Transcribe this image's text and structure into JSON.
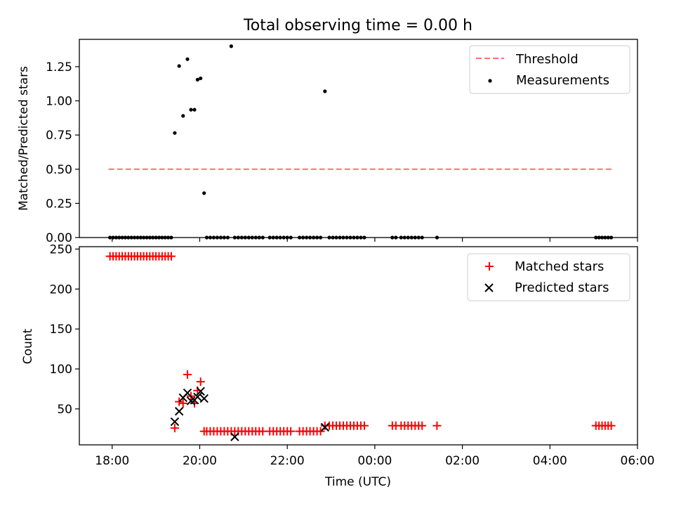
{
  "title": "Total observing time = 0.00 h",
  "chart_data": [
    {
      "type": "scatter",
      "ylabel": "Matched/Predicted stars",
      "xlim_hours": [
        17.25,
        30.0
      ],
      "ylim": [
        0.0,
        1.45
      ],
      "x_ticks": [
        {
          "value": 18,
          "label": ""
        },
        {
          "value": 20,
          "label": ""
        },
        {
          "value": 22,
          "label": ""
        },
        {
          "value": 24,
          "label": ""
        },
        {
          "value": 26,
          "label": ""
        },
        {
          "value": 28,
          "label": ""
        },
        {
          "value": 30,
          "label": ""
        }
      ],
      "y_ticks": [
        {
          "value": 0.0,
          "label": "0.00"
        },
        {
          "value": 0.25,
          "label": "0.25"
        },
        {
          "value": 0.5,
          "label": "0.50"
        },
        {
          "value": 0.75,
          "label": "0.75"
        },
        {
          "value": 1.0,
          "label": "1.00"
        },
        {
          "value": 1.25,
          "label": "1.25"
        }
      ],
      "legend": "top-right",
      "threshold": {
        "name": "Threshold",
        "y": 0.5,
        "x_range": [
          17.92,
          29.45
        ],
        "color": "#ff7070"
      },
      "series": [
        {
          "name": "Measurements",
          "color": "#000000",
          "marker": "dot",
          "x": [
            17.95,
            18.02,
            18.09,
            18.16,
            18.23,
            18.3,
            18.37,
            18.44,
            18.51,
            18.58,
            18.65,
            18.72,
            18.79,
            18.86,
            18.93,
            19.0,
            19.07,
            19.14,
            19.21,
            19.28,
            19.35,
            19.43,
            19.53,
            19.62,
            19.72,
            19.8,
            19.88,
            19.95,
            20.02,
            20.1,
            20.16,
            20.24,
            20.32,
            20.4,
            20.48,
            20.56,
            20.64,
            20.72,
            20.8,
            20.88,
            20.96,
            21.04,
            21.12,
            21.2,
            21.28,
            21.36,
            21.44,
            21.6,
            21.68,
            21.76,
            21.84,
            21.92,
            22.0,
            22.08,
            22.28,
            22.36,
            22.44,
            22.52,
            22.6,
            22.68,
            22.76,
            22.86,
            22.96,
            23.04,
            23.12,
            23.2,
            23.28,
            23.36,
            23.44,
            23.52,
            23.6,
            23.68,
            23.76,
            24.4,
            24.48,
            24.6,
            24.68,
            24.76,
            24.84,
            24.92,
            25.0,
            25.08,
            25.42,
            29.05,
            29.12,
            29.19,
            29.26,
            29.33,
            29.4
          ],
          "y": [
            0,
            0,
            0,
            0,
            0,
            0,
            0,
            0,
            0,
            0,
            0,
            0,
            0,
            0,
            0,
            0,
            0,
            0,
            0,
            0,
            0,
            0.765,
            1.255,
            0.89,
            1.305,
            0.935,
            0.935,
            1.155,
            1.165,
            0.325,
            0,
            0,
            0,
            0,
            0,
            0,
            0,
            1.4,
            0,
            0,
            0,
            0,
            0,
            0,
            0,
            0,
            0,
            0,
            0,
            0,
            0,
            0,
            0,
            0,
            0,
            0,
            0,
            0,
            0,
            0,
            0,
            1.07,
            0,
            0,
            0,
            0,
            0,
            0,
            0,
            0,
            0,
            0,
            0,
            0,
            0,
            0,
            0,
            0,
            0,
            0,
            0,
            0,
            0,
            0,
            0,
            0,
            0,
            0,
            0
          ]
        }
      ]
    },
    {
      "type": "scatter",
      "ylabel": "Count",
      "xlabel": "Time (UTC)",
      "xlim_hours": [
        17.25,
        30.0
      ],
      "ylim": [
        5,
        253
      ],
      "x_ticks": [
        {
          "value": 18,
          "label": "18:00"
        },
        {
          "value": 20,
          "label": "20:00"
        },
        {
          "value": 22,
          "label": "22:00"
        },
        {
          "value": 24,
          "label": "00:00"
        },
        {
          "value": 26,
          "label": "02:00"
        },
        {
          "value": 28,
          "label": "04:00"
        },
        {
          "value": 30,
          "label": "06:00"
        }
      ],
      "y_ticks": [
        {
          "value": 50,
          "label": "50"
        },
        {
          "value": 100,
          "label": "100"
        },
        {
          "value": 150,
          "label": "150"
        },
        {
          "value": 200,
          "label": "200"
        },
        {
          "value": 250,
          "label": "250"
        }
      ],
      "legend": "top-right",
      "series": [
        {
          "name": "Matched stars",
          "color": "#ff0000",
          "marker": "plus",
          "x": [
            17.95,
            18.02,
            18.09,
            18.16,
            18.23,
            18.3,
            18.37,
            18.44,
            18.51,
            18.58,
            18.65,
            18.72,
            18.79,
            18.86,
            18.93,
            19.0,
            19.07,
            19.14,
            19.21,
            19.28,
            19.35,
            19.43,
            19.53,
            19.62,
            19.72,
            19.8,
            19.88,
            19.95,
            20.02,
            20.1,
            20.16,
            20.24,
            20.32,
            20.4,
            20.48,
            20.56,
            20.64,
            20.72,
            20.8,
            20.88,
            20.96,
            21.04,
            21.12,
            21.2,
            21.28,
            21.36,
            21.44,
            21.6,
            21.68,
            21.76,
            21.84,
            21.92,
            22.0,
            22.08,
            22.28,
            22.36,
            22.44,
            22.52,
            22.6,
            22.68,
            22.76,
            22.86,
            22.96,
            23.04,
            23.12,
            23.2,
            23.28,
            23.36,
            23.44,
            23.52,
            23.6,
            23.68,
            23.76,
            24.4,
            24.48,
            24.6,
            24.68,
            24.76,
            24.84,
            24.92,
            25.0,
            25.08,
            25.42,
            29.05,
            29.12,
            29.19,
            29.26,
            29.33,
            29.4
          ],
          "y": [
            241,
            241,
            241,
            241,
            241,
            241,
            241,
            241,
            241,
            241,
            241,
            241,
            241,
            241,
            241,
            241,
            241,
            241,
            241,
            241,
            241,
            26,
            59,
            57,
            93,
            66,
            57,
            73,
            84,
            22,
            22,
            22,
            22,
            22,
            22,
            22,
            22,
            22,
            22,
            22,
            22,
            22,
            22,
            22,
            22,
            22,
            22,
            22,
            22,
            22,
            22,
            22,
            22,
            22,
            22,
            22,
            22,
            22,
            22,
            22,
            22,
            29,
            29,
            29,
            29,
            29,
            29,
            29,
            29,
            29,
            29,
            29,
            29,
            29,
            29,
            29,
            29,
            29,
            29,
            29,
            29,
            29,
            29,
            29,
            29,
            29,
            29,
            29,
            29
          ]
        },
        {
          "name": "Predicted stars",
          "color": "#000000",
          "marker": "x",
          "x": [
            19.43,
            19.53,
            19.62,
            19.72,
            19.8,
            19.88,
            19.95,
            20.02,
            20.1,
            20.8,
            22.86
          ],
          "y": [
            34,
            47,
            64,
            70,
            60,
            61,
            65,
            72,
            63,
            15,
            27
          ]
        }
      ]
    }
  ]
}
